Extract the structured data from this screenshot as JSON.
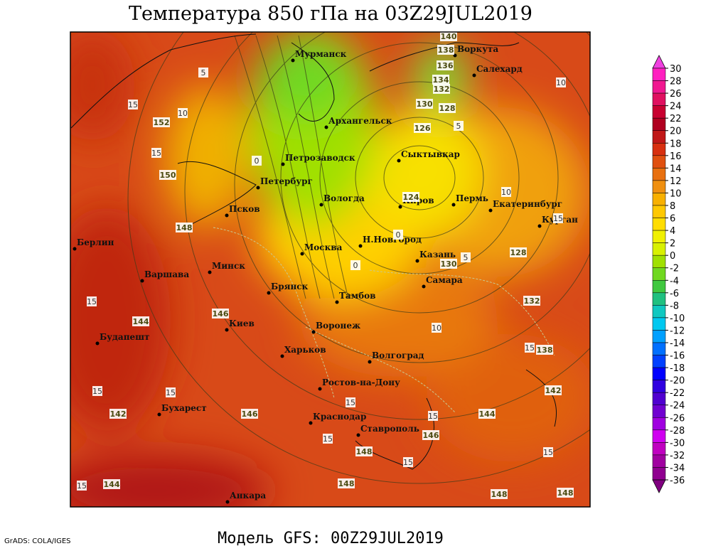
{
  "title": "Температура 850 гПа на 03Z29JUL2019",
  "footer": "Модель GFS: 00Z29JUL2019",
  "credit": "GrADS: COLA/IGES",
  "cities": [
    "Мурманск",
    "Воркута",
    "Салехард",
    "Архангельск",
    "Сыктывкар",
    "Петрозаводск",
    "Петербург",
    "Вологда",
    "Киров",
    "Пермь",
    "Екатеринбург",
    "Курган",
    "Псков",
    "Берлин",
    "Москва",
    "Н.Новгород",
    "Казань",
    "Минск",
    "Варшава",
    "Самара",
    "Брянск",
    "Тамбов",
    "Киев",
    "Воронеж",
    "Будапешт",
    "Харьков",
    "Волгоград",
    "Ростов-на-Дону",
    "Бухарест",
    "Краснодар",
    "Ставрополь",
    "Анкара"
  ],
  "contour_labels": [
    140,
    138,
    136,
    134,
    132,
    130,
    128,
    126,
    124,
    130,
    128,
    132,
    138,
    142,
    144,
    146,
    148,
    148,
    148,
    148,
    144,
    142,
    146,
    146,
    144,
    148,
    150,
    152,
    10,
    10,
    10,
    5,
    5,
    5,
    10,
    15,
    15,
    0,
    0,
    0,
    15,
    15,
    15,
    15,
    15,
    15,
    15,
    15,
    15,
    15,
    15
  ],
  "colorbar": {
    "levels": [
      30,
      28,
      26,
      24,
      22,
      20,
      18,
      16,
      14,
      12,
      10,
      8,
      6,
      4,
      2,
      0,
      -2,
      -4,
      -6,
      -8,
      -10,
      -12,
      -14,
      -16,
      -18,
      -20,
      -22,
      -24,
      -26,
      -28,
      -30,
      -32,
      -34,
      -36
    ],
    "colors": [
      "#f040e0",
      "#ff20c0",
      "#f01890",
      "#e01060",
      "#c80030",
      "#b00020",
      "#c01818",
      "#d83010",
      "#e05010",
      "#e87010",
      "#f09010",
      "#f8b000",
      "#ffc800",
      "#ffdd00",
      "#f0f000",
      "#d8f000",
      "#a0e000",
      "#70d820",
      "#40c840",
      "#20c080",
      "#10c8c0",
      "#00c8f0",
      "#00a0ff",
      "#0070ff",
      "#0040ff",
      "#0000ff",
      "#3000e0",
      "#5000d0",
      "#7000d0",
      "#a000e0",
      "#d000f0",
      "#c000c0",
      "#a000a0",
      "#900090",
      "#800080"
    ]
  }
}
